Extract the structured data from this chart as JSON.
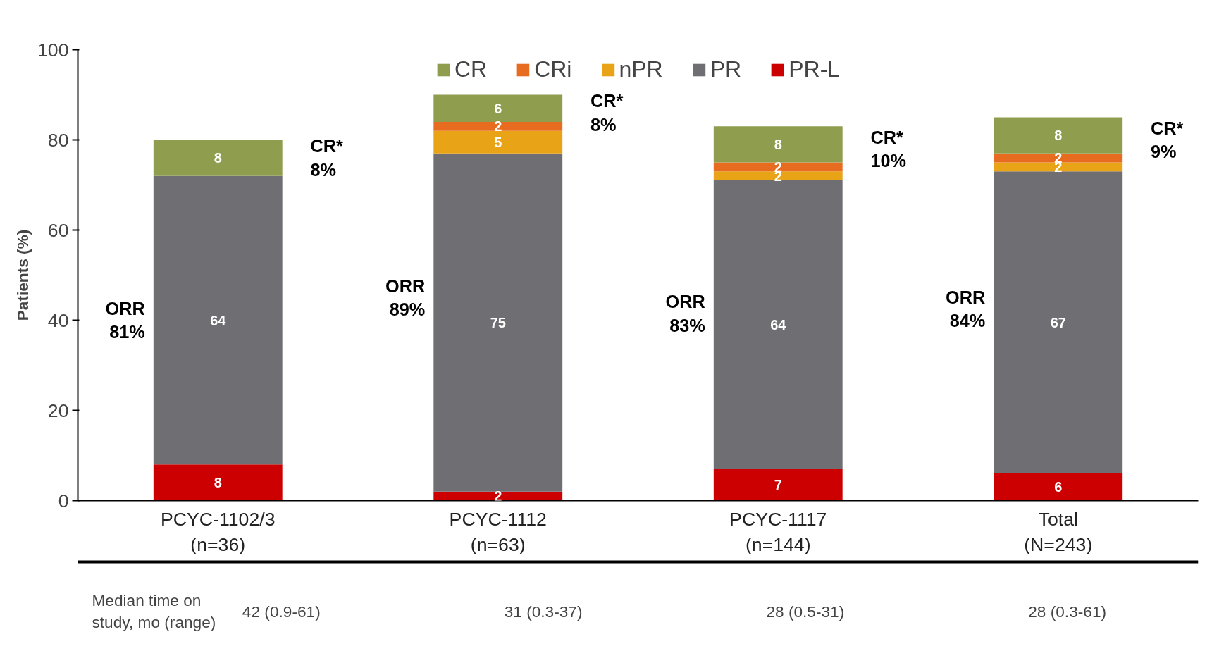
{
  "chart_data": {
    "type": "bar",
    "stacked": true,
    "ylabel": "Patients (%)",
    "categories": [
      "PCYC-1102/3\n(n=36)",
      "PCYC-1112\n(n=63)",
      "PCYC-1117\n(n=144)",
      "Total\n(N=243)"
    ],
    "series": [
      {
        "name": "PR-L",
        "color": "#cc0000",
        "values": [
          8,
          2,
          7,
          6
        ]
      },
      {
        "name": "PR",
        "color": "#6f6e73",
        "values": [
          64,
          75,
          64,
          67
        ]
      },
      {
        "name": "nPR",
        "color": "#e8a317",
        "values": [
          null,
          5,
          2,
          2
        ]
      },
      {
        "name": "CRi",
        "color": "#e86c1f",
        "values": [
          null,
          2,
          2,
          2
        ]
      },
      {
        "name": "CR",
        "color": "#8f9e4e",
        "values": [
          8,
          6,
          8,
          8
        ]
      }
    ],
    "ylim": [
      0,
      100
    ],
    "yticks": [
      0,
      20,
      40,
      60,
      80,
      100
    ],
    "grid": false,
    "legend": "top",
    "data_labels": true,
    "annotations": [
      "ORR\n81%",
      "CR*\n8%",
      "ORR\n89%",
      "CR*\n8%",
      "ORR\n83%",
      "CR*\n10%",
      "ORR\n84%",
      "CR*\n9%",
      "Median time on\nstudy, mo (range)",
      "42 (0.9-61)",
      "31 (0.3-37)",
      "28 (0.5-31)",
      "28 (0.3-61)"
    ]
  }
}
